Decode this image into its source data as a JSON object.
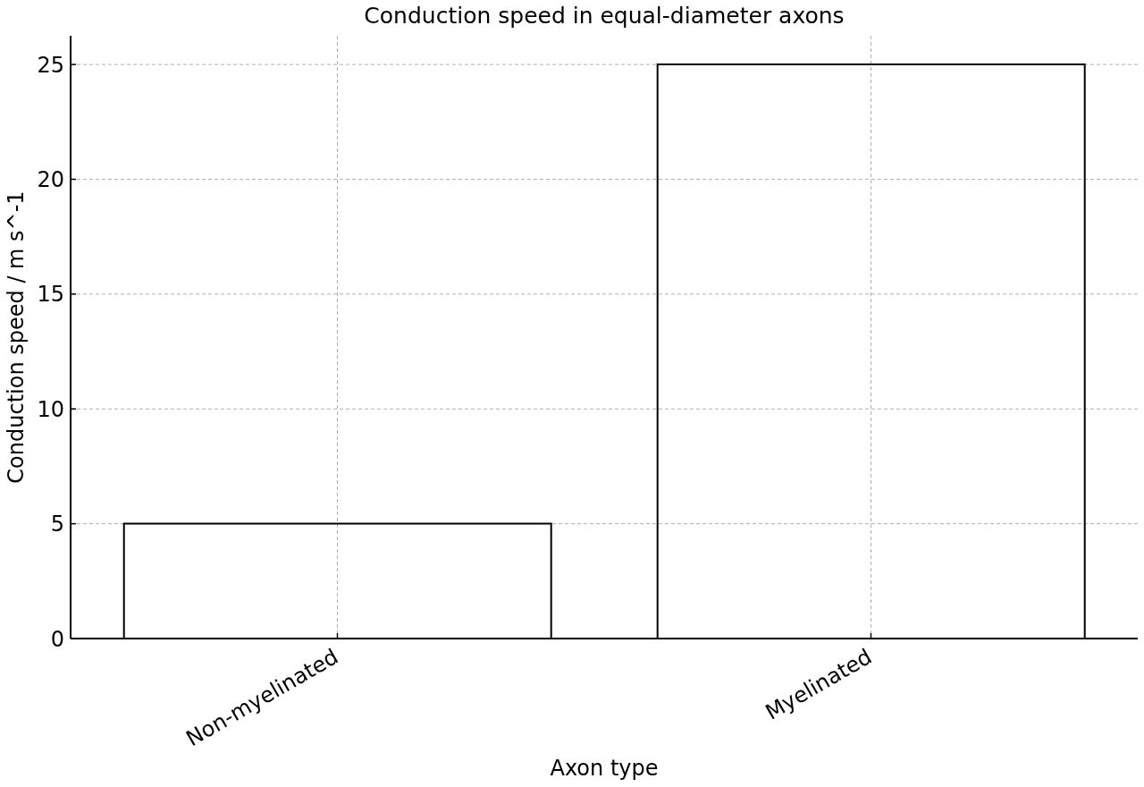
{
  "chart_data": {
    "type": "bar",
    "title": "Conduction speed in equal-diameter axons",
    "xlabel": "Axon type",
    "ylabel": "Conduction speed / m s^-1",
    "categories": [
      "Non-myelinated",
      "Myelinated"
    ],
    "values": [
      5,
      25
    ],
    "color": "#000000",
    "ylim": [
      0,
      26.25
    ],
    "yticks": [
      0,
      5,
      10,
      15,
      20,
      25
    ],
    "grid": true
  }
}
